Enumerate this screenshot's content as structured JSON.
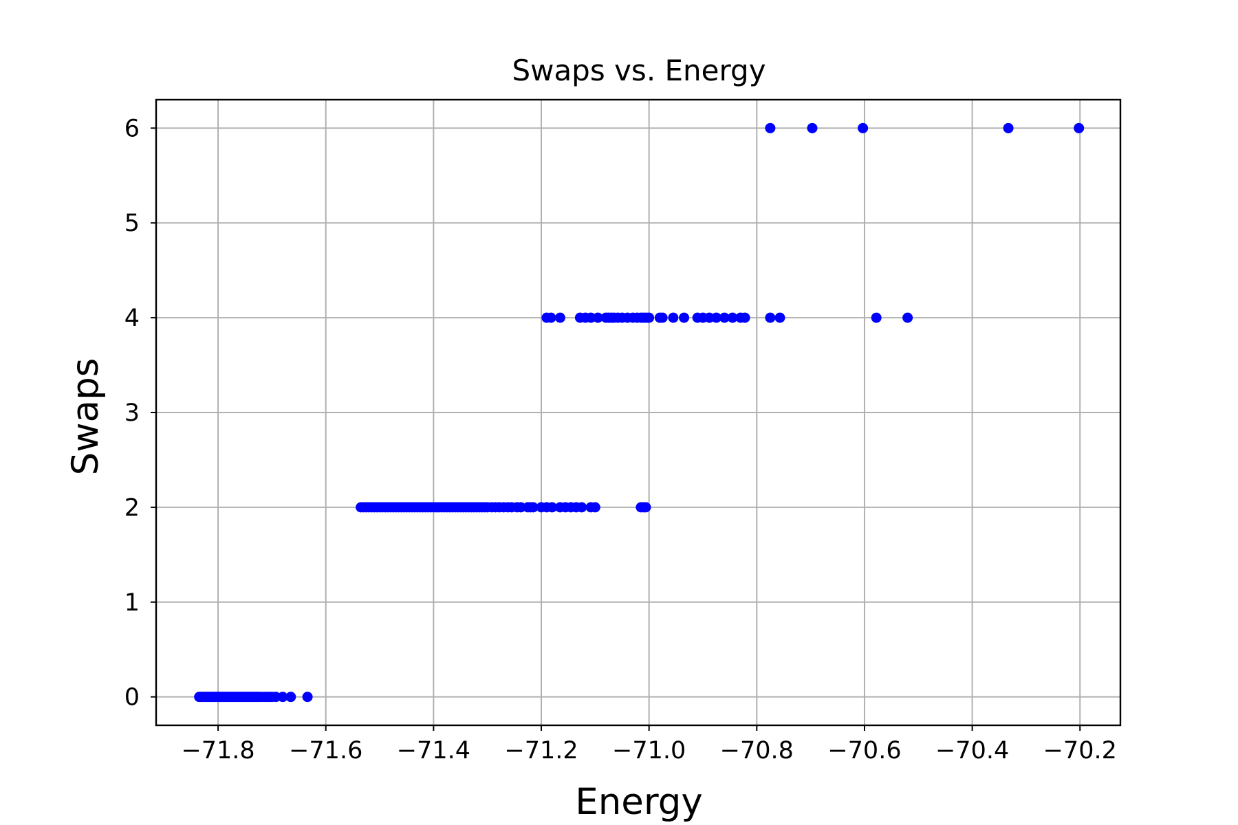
{
  "chart_data": {
    "type": "scatter",
    "title": "Swaps vs. Energy",
    "xlabel": "Energy",
    "ylabel": "Swaps",
    "xlim": [
      -71.915,
      -70.125
    ],
    "ylim": [
      -0.3,
      6.3
    ],
    "xticks": [
      -71.8,
      -71.6,
      -71.4,
      -71.2,
      -71.0,
      -70.8,
      -70.6,
      -70.4,
      -70.2
    ],
    "xtick_labels": [
      "−71.8",
      "−71.6",
      "−71.4",
      "−71.2",
      "−71.0",
      "−70.8",
      "−70.6",
      "−70.4",
      "−70.2"
    ],
    "yticks": [
      0,
      1,
      2,
      3,
      4,
      5,
      6
    ],
    "ytick_labels": [
      "0",
      "1",
      "2",
      "3",
      "4",
      "5",
      "6"
    ],
    "grid": true,
    "marker_color": "#0000ff",
    "points": [
      {
        "x": -71.835,
        "y": 0
      },
      {
        "x": -71.832,
        "y": 0
      },
      {
        "x": -71.829,
        "y": 0
      },
      {
        "x": -71.826,
        "y": 0
      },
      {
        "x": -71.823,
        "y": 0
      },
      {
        "x": -71.82,
        "y": 0
      },
      {
        "x": -71.817,
        "y": 0
      },
      {
        "x": -71.814,
        "y": 0
      },
      {
        "x": -71.811,
        "y": 0
      },
      {
        "x": -71.808,
        "y": 0
      },
      {
        "x": -71.805,
        "y": 0
      },
      {
        "x": -71.802,
        "y": 0
      },
      {
        "x": -71.799,
        "y": 0
      },
      {
        "x": -71.796,
        "y": 0
      },
      {
        "x": -71.793,
        "y": 0
      },
      {
        "x": -71.79,
        "y": 0
      },
      {
        "x": -71.787,
        "y": 0
      },
      {
        "x": -71.784,
        "y": 0
      },
      {
        "x": -71.781,
        "y": 0
      },
      {
        "x": -71.778,
        "y": 0
      },
      {
        "x": -71.775,
        "y": 0
      },
      {
        "x": -71.772,
        "y": 0
      },
      {
        "x": -71.769,
        "y": 0
      },
      {
        "x": -71.766,
        "y": 0
      },
      {
        "x": -71.763,
        "y": 0
      },
      {
        "x": -71.76,
        "y": 0
      },
      {
        "x": -71.757,
        "y": 0
      },
      {
        "x": -71.754,
        "y": 0
      },
      {
        "x": -71.751,
        "y": 0
      },
      {
        "x": -71.748,
        "y": 0
      },
      {
        "x": -71.745,
        "y": 0
      },
      {
        "x": -71.742,
        "y": 0
      },
      {
        "x": -71.739,
        "y": 0
      },
      {
        "x": -71.736,
        "y": 0
      },
      {
        "x": -71.733,
        "y": 0
      },
      {
        "x": -71.73,
        "y": 0
      },
      {
        "x": -71.727,
        "y": 0
      },
      {
        "x": -71.724,
        "y": 0
      },
      {
        "x": -71.72,
        "y": 0
      },
      {
        "x": -71.715,
        "y": 0
      },
      {
        "x": -71.71,
        "y": 0
      },
      {
        "x": -71.705,
        "y": 0
      },
      {
        "x": -71.7,
        "y": 0
      },
      {
        "x": -71.693,
        "y": 0
      },
      {
        "x": -71.68,
        "y": 0
      },
      {
        "x": -71.665,
        "y": 0
      },
      {
        "x": -71.634,
        "y": 0
      },
      {
        "x": -71.535,
        "y": 2
      },
      {
        "x": -71.53,
        "y": 2
      },
      {
        "x": -71.525,
        "y": 2
      },
      {
        "x": -71.52,
        "y": 2
      },
      {
        "x": -71.515,
        "y": 2
      },
      {
        "x": -71.51,
        "y": 2
      },
      {
        "x": -71.505,
        "y": 2
      },
      {
        "x": -71.5,
        "y": 2
      },
      {
        "x": -71.495,
        "y": 2
      },
      {
        "x": -71.49,
        "y": 2
      },
      {
        "x": -71.485,
        "y": 2
      },
      {
        "x": -71.48,
        "y": 2
      },
      {
        "x": -71.475,
        "y": 2
      },
      {
        "x": -71.47,
        "y": 2
      },
      {
        "x": -71.465,
        "y": 2
      },
      {
        "x": -71.46,
        "y": 2
      },
      {
        "x": -71.455,
        "y": 2
      },
      {
        "x": -71.45,
        "y": 2
      },
      {
        "x": -71.445,
        "y": 2
      },
      {
        "x": -71.44,
        "y": 2
      },
      {
        "x": -71.435,
        "y": 2
      },
      {
        "x": -71.43,
        "y": 2
      },
      {
        "x": -71.425,
        "y": 2
      },
      {
        "x": -71.42,
        "y": 2
      },
      {
        "x": -71.415,
        "y": 2
      },
      {
        "x": -71.41,
        "y": 2
      },
      {
        "x": -71.405,
        "y": 2
      },
      {
        "x": -71.4,
        "y": 2
      },
      {
        "x": -71.395,
        "y": 2
      },
      {
        "x": -71.39,
        "y": 2
      },
      {
        "x": -71.385,
        "y": 2
      },
      {
        "x": -71.38,
        "y": 2
      },
      {
        "x": -71.375,
        "y": 2
      },
      {
        "x": -71.37,
        "y": 2
      },
      {
        "x": -71.365,
        "y": 2
      },
      {
        "x": -71.36,
        "y": 2
      },
      {
        "x": -71.355,
        "y": 2
      },
      {
        "x": -71.35,
        "y": 2
      },
      {
        "x": -71.345,
        "y": 2
      },
      {
        "x": -71.34,
        "y": 2
      },
      {
        "x": -71.335,
        "y": 2
      },
      {
        "x": -71.33,
        "y": 2
      },
      {
        "x": -71.325,
        "y": 2
      },
      {
        "x": -71.32,
        "y": 2
      },
      {
        "x": -71.315,
        "y": 2
      },
      {
        "x": -71.31,
        "y": 2
      },
      {
        "x": -71.305,
        "y": 2
      },
      {
        "x": -71.3,
        "y": 2
      },
      {
        "x": -71.292,
        "y": 2
      },
      {
        "x": -71.285,
        "y": 2
      },
      {
        "x": -71.278,
        "y": 2
      },
      {
        "x": -71.27,
        "y": 2
      },
      {
        "x": -71.262,
        "y": 2
      },
      {
        "x": -71.255,
        "y": 2
      },
      {
        "x": -71.245,
        "y": 2
      },
      {
        "x": -71.238,
        "y": 2
      },
      {
        "x": -71.225,
        "y": 2
      },
      {
        "x": -71.22,
        "y": 2
      },
      {
        "x": -71.215,
        "y": 2
      },
      {
        "x": -71.2,
        "y": 2
      },
      {
        "x": -71.19,
        "y": 2
      },
      {
        "x": -71.18,
        "y": 2
      },
      {
        "x": -71.165,
        "y": 2
      },
      {
        "x": -71.155,
        "y": 2
      },
      {
        "x": -71.145,
        "y": 2
      },
      {
        "x": -71.135,
        "y": 2
      },
      {
        "x": -71.125,
        "y": 2
      },
      {
        "x": -71.108,
        "y": 2
      },
      {
        "x": -71.1,
        "y": 2
      },
      {
        "x": -71.015,
        "y": 2
      },
      {
        "x": -71.01,
        "y": 2
      },
      {
        "x": -71.006,
        "y": 2
      },
      {
        "x": -71.19,
        "y": 4
      },
      {
        "x": -71.182,
        "y": 4
      },
      {
        "x": -71.165,
        "y": 4
      },
      {
        "x": -71.128,
        "y": 4
      },
      {
        "x": -71.118,
        "y": 4
      },
      {
        "x": -71.108,
        "y": 4
      },
      {
        "x": -71.095,
        "y": 4
      },
      {
        "x": -71.08,
        "y": 4
      },
      {
        "x": -71.075,
        "y": 4
      },
      {
        "x": -71.07,
        "y": 4
      },
      {
        "x": -71.065,
        "y": 4
      },
      {
        "x": -71.058,
        "y": 4
      },
      {
        "x": -71.05,
        "y": 4
      },
      {
        "x": -71.04,
        "y": 4
      },
      {
        "x": -71.03,
        "y": 4
      },
      {
        "x": -71.022,
        "y": 4
      },
      {
        "x": -71.015,
        "y": 4
      },
      {
        "x": -71.01,
        "y": 4
      },
      {
        "x": -71.005,
        "y": 4
      },
      {
        "x": -71.0,
        "y": 4
      },
      {
        "x": -70.98,
        "y": 4
      },
      {
        "x": -70.975,
        "y": 4
      },
      {
        "x": -70.955,
        "y": 4
      },
      {
        "x": -70.935,
        "y": 4
      },
      {
        "x": -70.91,
        "y": 4
      },
      {
        "x": -70.9,
        "y": 4
      },
      {
        "x": -70.888,
        "y": 4
      },
      {
        "x": -70.875,
        "y": 4
      },
      {
        "x": -70.86,
        "y": 4
      },
      {
        "x": -70.845,
        "y": 4
      },
      {
        "x": -70.83,
        "y": 4
      },
      {
        "x": -70.822,
        "y": 4
      },
      {
        "x": -70.775,
        "y": 4
      },
      {
        "x": -70.757,
        "y": 4
      },
      {
        "x": -70.578,
        "y": 4
      },
      {
        "x": -70.52,
        "y": 4
      },
      {
        "x": -70.775,
        "y": 6
      },
      {
        "x": -70.697,
        "y": 6
      },
      {
        "x": -70.603,
        "y": 6
      },
      {
        "x": -70.333,
        "y": 6
      },
      {
        "x": -70.202,
        "y": 6
      }
    ]
  }
}
